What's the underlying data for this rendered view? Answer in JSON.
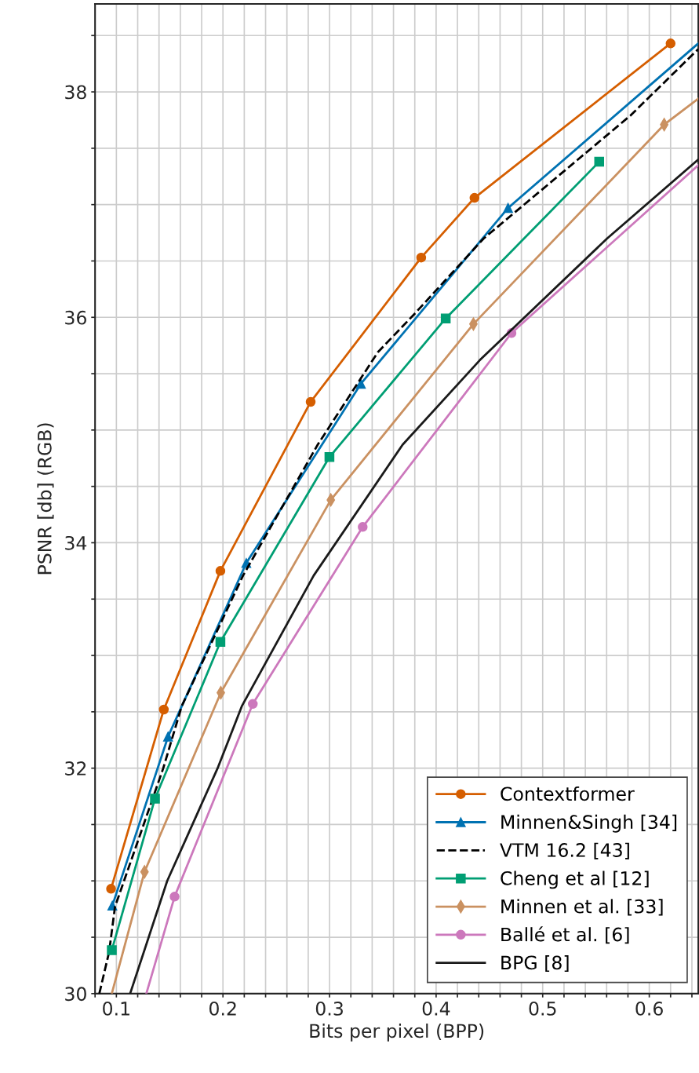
{
  "chart_data": {
    "type": "line",
    "xlabel": "Bits per pixel (BPP)",
    "ylabel": "PSNR [db] (RGB)",
    "xlim": [
      0.08,
      0.646
    ],
    "ylim": [
      30,
      38.78
    ],
    "xticks": [
      {
        "value": 0.08,
        "label": null
      },
      {
        "value": 0.1,
        "label": "0.1"
      },
      {
        "value": 0.12,
        "label": null
      },
      {
        "value": 0.14,
        "label": null
      },
      {
        "value": 0.16,
        "label": null
      },
      {
        "value": 0.18,
        "label": null
      },
      {
        "value": 0.2,
        "label": "0.2"
      },
      {
        "value": 0.22,
        "label": null
      },
      {
        "value": 0.24,
        "label": null
      },
      {
        "value": 0.26,
        "label": null
      },
      {
        "value": 0.28,
        "label": null
      },
      {
        "value": 0.3,
        "label": "0.3"
      },
      {
        "value": 0.32,
        "label": null
      },
      {
        "value": 0.34,
        "label": null
      },
      {
        "value": 0.36,
        "label": null
      },
      {
        "value": 0.38,
        "label": null
      },
      {
        "value": 0.4,
        "label": "0.4"
      },
      {
        "value": 0.42,
        "label": null
      },
      {
        "value": 0.44,
        "label": null
      },
      {
        "value": 0.46,
        "label": null
      },
      {
        "value": 0.48,
        "label": null
      },
      {
        "value": 0.5,
        "label": "0.5"
      },
      {
        "value": 0.52,
        "label": null
      },
      {
        "value": 0.54,
        "label": null
      },
      {
        "value": 0.56,
        "label": null
      },
      {
        "value": 0.58,
        "label": null
      },
      {
        "value": 0.6,
        "label": "0.6"
      },
      {
        "value": 0.62,
        "label": null
      },
      {
        "value": 0.64,
        "label": null
      }
    ],
    "yticks": [
      30,
      {
        "value": 30.5,
        "label": null
      },
      {
        "value": 31,
        "label": null
      },
      {
        "value": 31.5,
        "label": null
      },
      32,
      {
        "value": 32.5,
        "label": null
      },
      {
        "value": 33,
        "label": null
      },
      {
        "value": 33.5,
        "label": null
      },
      34,
      {
        "value": 34.5,
        "label": null
      },
      {
        "value": 35,
        "label": null
      },
      {
        "value": 35.5,
        "label": null
      },
      36,
      {
        "value": 36.5,
        "label": null
      },
      {
        "value": 37,
        "label": null
      },
      {
        "value": 37.5,
        "label": null
      },
      38,
      {
        "value": 38.5,
        "label": null
      }
    ],
    "grid": true,
    "legend": "bottom right",
    "series": [
      {
        "name": "Contextformer",
        "color": "#d55e00",
        "marker": "circle",
        "line_style": "solid",
        "x": [
          0.095,
          0.1445,
          0.1976,
          0.2823,
          0.386,
          0.436,
          0.62
        ],
        "values": [
          30.93,
          32.52,
          33.75,
          35.25,
          36.53,
          37.06,
          38.43
        ]
      },
      {
        "name": "Minnen&Singh [34]",
        "color": "#0072b2",
        "marker": "triangle",
        "line_style": "solid",
        "x": [
          0.0962,
          0.1485,
          0.2219,
          0.3294,
          0.4675
        ],
        "values": [
          30.78,
          32.28,
          33.82,
          35.41,
          36.97
        ]
      },
      {
        "name": "VTM 16.2 [43]",
        "color": "#000000",
        "marker": "none",
        "line_style": "dashed",
        "x": [
          0.084,
          0.0932,
          0.0987,
          0.144,
          0.1613,
          0.2189,
          0.2889,
          0.3453,
          0.3797,
          0.4447,
          0.5823,
          0.646
        ],
        "values": [
          30,
          30.37,
          30.77,
          32,
          32.55,
          33.71,
          34.87,
          35.69,
          36.03,
          36.7,
          37.79,
          38.38
        ]
      },
      {
        "name": "Cheng et al [12]",
        "color": "#009e73",
        "marker": "square",
        "line_style": "solid",
        "x": [
          0.0957,
          0.1362,
          0.1976,
          0.2999,
          0.409,
          0.553
        ],
        "values": [
          30.385,
          31.73,
          33.12,
          34.76,
          35.99,
          37.38
        ]
      },
      {
        "name": "Minnen et al. [33]",
        "color": "#ca9161",
        "marker": "diamond",
        "line_style": "solid",
        "x": [
          0.1264,
          0.198,
          0.3012,
          0.435,
          0.614
        ],
        "values": [
          31.08,
          32.67,
          34.38,
          35.94,
          37.71
        ]
      },
      {
        "name": "Ballé et al. [6]",
        "color": "#cc78bc",
        "marker": "circle",
        "line_style": "solid",
        "x": [
          0.1546,
          0.228,
          0.3311,
          0.4707
        ],
        "values": [
          30.86,
          32.57,
          34.14,
          35.86
        ]
      },
      {
        "name": "BPG [8]",
        "color": "#1a1a1a",
        "marker": "none",
        "line_style": "solid",
        "x": [
          0.1129,
          0.1477,
          0.195,
          0.2177,
          0.2852,
          0.3686,
          0.441,
          0.5605,
          0.646
        ],
        "values": [
          30,
          31,
          32,
          32.55,
          33.71,
          34.87,
          35.62,
          36.7,
          37.4
        ]
      },
      {
        "color": "#0072b2",
        "marker": "none",
        "line_style": "solid",
        "x": [
          0.4675,
          0.646
        ],
        "values": [
          36.97,
          38.43
        ]
      },
      {
        "color": "#ca9161",
        "marker": "none",
        "line_style": "solid",
        "x": [
          0.0957,
          0.1264
        ],
        "values": [
          30,
          31.08
        ]
      },
      {
        "color": "#ca9161",
        "marker": "none",
        "line_style": "solid",
        "x": [
          0.614,
          0.646
        ],
        "values": [
          37.71,
          37.94
        ]
      },
      {
        "color": "#cc78bc",
        "marker": "none",
        "line_style": "solid",
        "x": [
          0.1281,
          0.1546
        ],
        "values": [
          30,
          30.86
        ]
      },
      {
        "color": "#cc78bc",
        "marker": "none",
        "line_style": "solid",
        "x": [
          0.4707,
          0.646
        ],
        "values": [
          35.86,
          37.35
        ]
      }
    ]
  }
}
